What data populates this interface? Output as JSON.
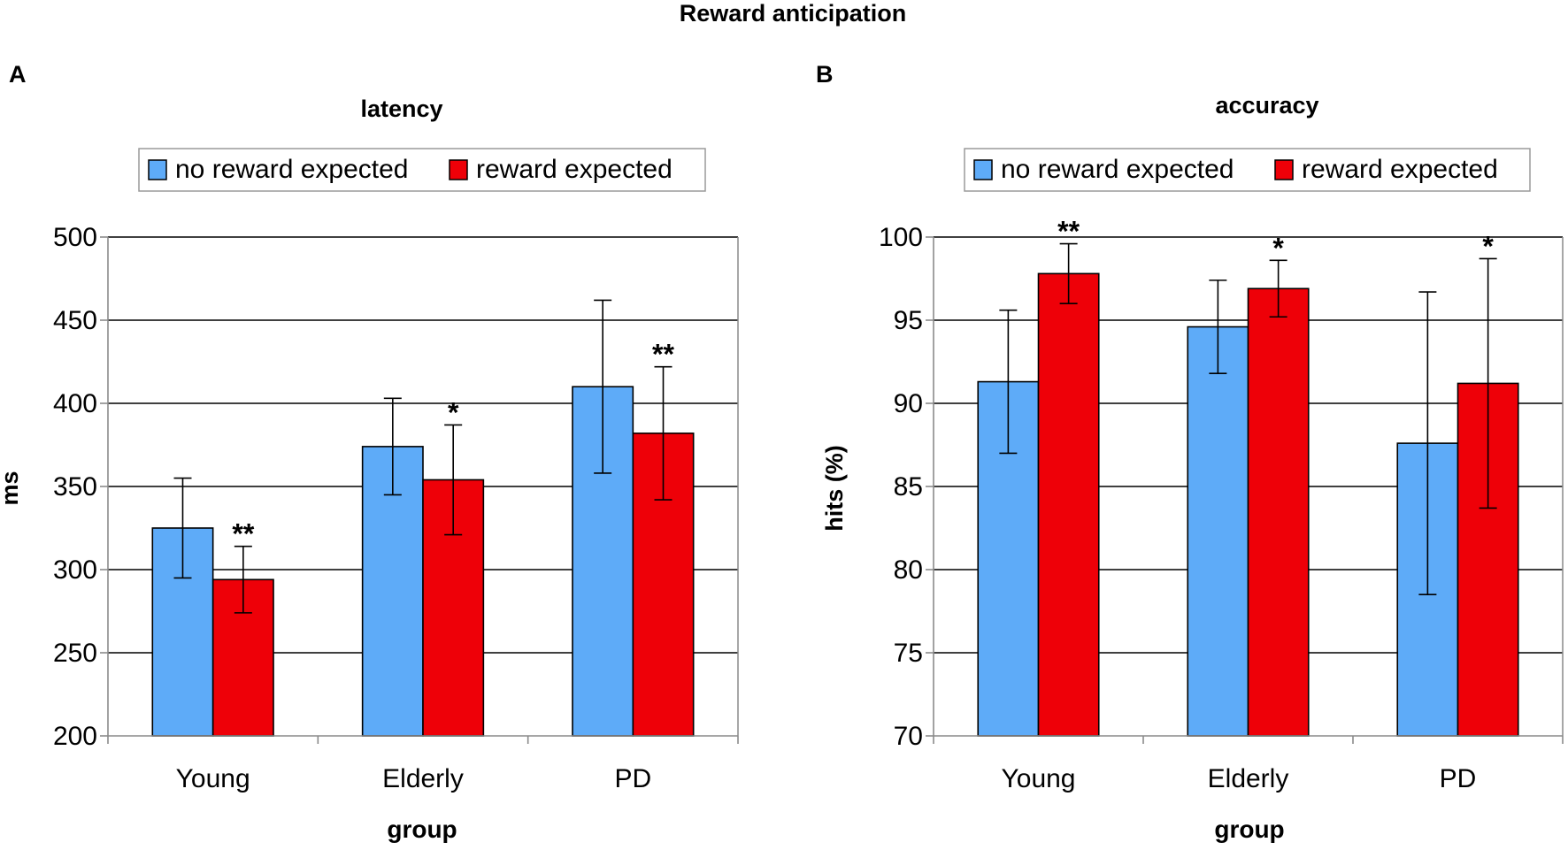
{
  "figure_title": "Reward anticipation",
  "chart_data": [
    {
      "panel": "A",
      "type": "bar",
      "title": "latency",
      "xlabel": "group",
      "ylabel": "ms",
      "ylim": [
        200,
        500
      ],
      "yticks": [
        200,
        250,
        300,
        350,
        400,
        450,
        500
      ],
      "grid": true,
      "legend_position": "top-center",
      "categories": [
        "Young",
        "Elderly",
        "PD"
      ],
      "series": [
        {
          "name": "no reward expected",
          "color": "#5eabf8",
          "values": [
            325,
            374,
            410
          ],
          "errors": [
            30,
            29,
            52
          ]
        },
        {
          "name": "reward expected",
          "color": "#ee0008",
          "values": [
            294,
            354,
            382
          ],
          "errors": [
            20,
            33,
            40
          ]
        }
      ],
      "annotations": [
        {
          "category": "Young",
          "series": "reward expected",
          "text": "**"
        },
        {
          "category": "Elderly",
          "series": "reward expected",
          "text": "*"
        },
        {
          "category": "PD",
          "series": "reward expected",
          "text": "**"
        }
      ]
    },
    {
      "panel": "B",
      "type": "bar",
      "title": "accuracy",
      "xlabel": "group",
      "ylabel": "hits (%)",
      "ylim": [
        70,
        100
      ],
      "yticks": [
        70,
        75,
        80,
        85,
        90,
        95,
        100
      ],
      "grid": true,
      "legend_position": "top-center",
      "categories": [
        "Young",
        "Elderly",
        "PD"
      ],
      "series": [
        {
          "name": "no reward expected",
          "color": "#5eabf8",
          "values": [
            91.3,
            94.6,
            87.6
          ],
          "errors": [
            4.3,
            2.8,
            9.1
          ]
        },
        {
          "name": "reward expected",
          "color": "#ee0008",
          "values": [
            97.8,
            96.9,
            91.2
          ],
          "errors": [
            1.8,
            1.7,
            7.5
          ]
        }
      ],
      "annotations": [
        {
          "category": "Young",
          "series": "reward expected",
          "text": "**"
        },
        {
          "category": "Elderly",
          "series": "reward expected",
          "text": "*"
        },
        {
          "category": "PD",
          "series": "reward expected",
          "text": "*"
        }
      ]
    }
  ]
}
